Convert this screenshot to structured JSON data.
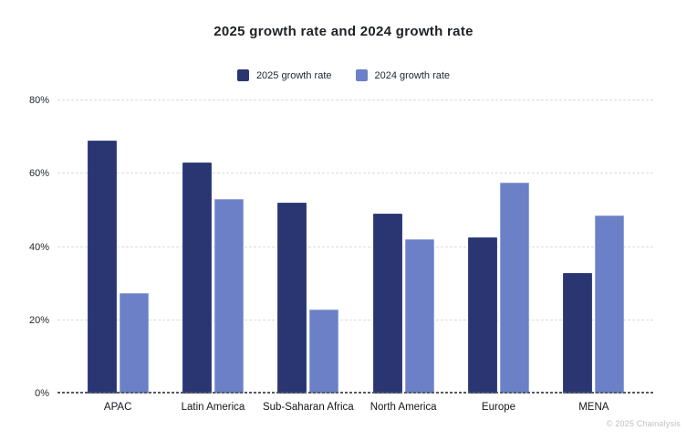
{
  "title": "2025 growth rate and 2024 growth rate",
  "footer": {
    "copyright": "© 2025 Chainalysis"
  },
  "colors": {
    "series_2025": "#2A3672",
    "series_2024": "#6B80C6",
    "gridline": "#dcdcdc",
    "baseline": "#555a60",
    "title_text": "#1e2126",
    "copyright_text": "#c1c1c1"
  },
  "chart_data": {
    "type": "bar",
    "title": "2025 growth rate and 2024 growth rate",
    "categories": [
      "APAC",
      "Latin America",
      "Sub-Saharan Africa",
      "North America",
      "Europe",
      "MENA"
    ],
    "series": [
      {
        "name": "2025 growth rate",
        "color": "#2A3672",
        "values": [
          69,
          63,
          52,
          49,
          42.5,
          33
        ]
      },
      {
        "name": "2024 growth rate",
        "color": "#6B80C6",
        "values": [
          27.5,
          53,
          23,
          42,
          57.5,
          48.5
        ]
      }
    ],
    "xlabel": "",
    "ylabel": "",
    "ylim": [
      0,
      80
    ],
    "yticks": [
      0,
      20,
      40,
      60,
      80
    ],
    "ytick_suffix": "%",
    "grid": true,
    "legend_position": "top-center"
  }
}
